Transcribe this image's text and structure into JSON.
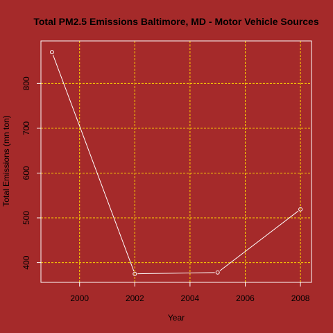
{
  "chart_data": {
    "type": "line",
    "title": "Total PM2.5 Emissions Baltimore, MD - Motor Vehicle Sources",
    "xlabel": "Year",
    "ylabel": "Total Emissions (mn ton)",
    "x": [
      1999,
      2002,
      2005,
      2008
    ],
    "series": [
      {
        "values": [
          870,
          375,
          378,
          519
        ]
      }
    ],
    "xlim": [
      1998.6,
      2008.4
    ],
    "ylim": [
      356,
      895
    ],
    "xticks": [
      2000,
      2002,
      2004,
      2006,
      2008
    ],
    "yticks": [
      400,
      500,
      600,
      700,
      800
    ],
    "grid": true,
    "colors": {
      "background": "#a52a2a",
      "line": "#ffffff",
      "grid": "#ffd700",
      "axis": "#ffffff",
      "text": "#000000"
    }
  }
}
